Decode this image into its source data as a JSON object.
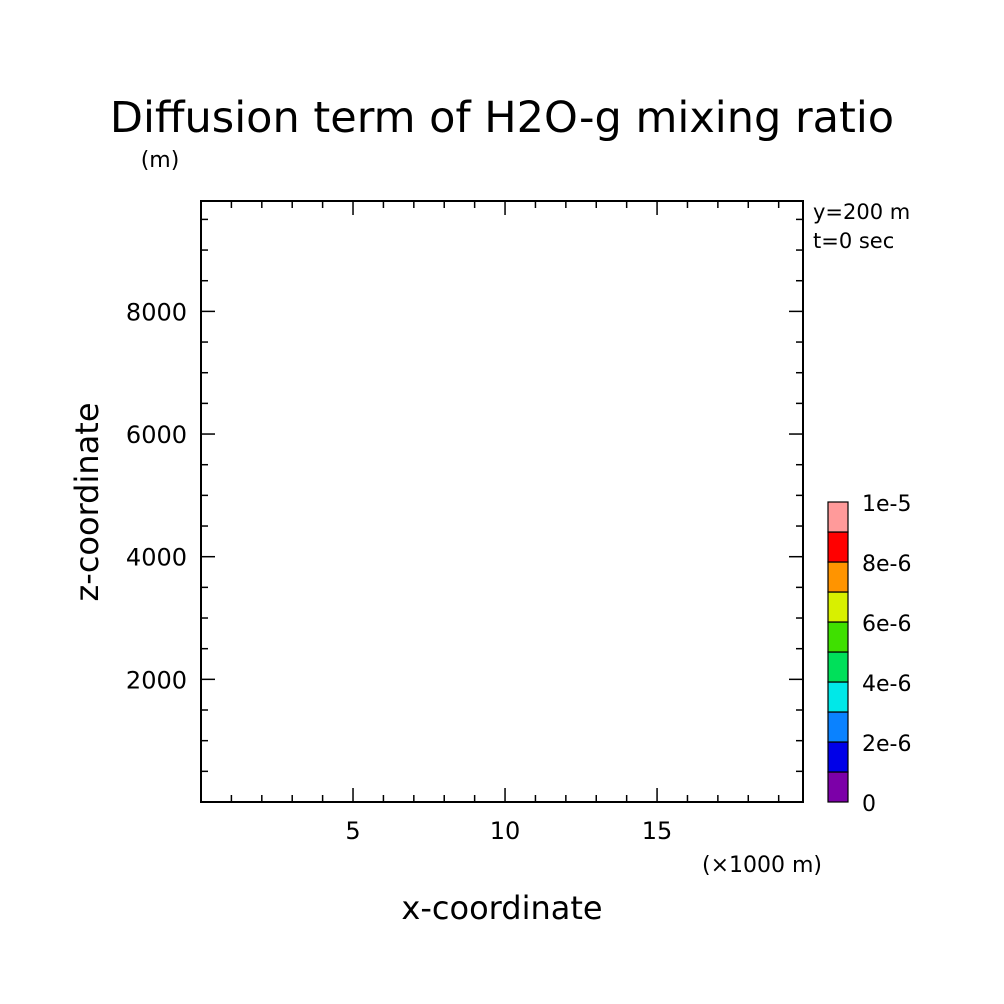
{
  "chart_data": {
    "type": "heatmap",
    "title": "Diffusion term of H2O-g mixing ratio",
    "z_unit": "(m)",
    "xlabel": "x-coordinate",
    "x_unit": "(×1000 m)",
    "ylabel": "z-coordinate",
    "xlim": [
      0.0,
      19.8
    ],
    "ylim": [
      0,
      9800
    ],
    "x_major_ticks": [
      5,
      10,
      15
    ],
    "x_minor_step": 1,
    "y_major_ticks": [
      2000,
      4000,
      6000,
      8000
    ],
    "y_minor_step": 500,
    "annotations": [
      "y=200 m",
      "t=0 sec"
    ],
    "field_values": "empty (no contours drawn)",
    "colorbar": {
      "levels": [
        0,
        1e-06,
        2e-06,
        3e-06,
        4e-06,
        5e-06,
        6e-06,
        7e-06,
        8e-06,
        9e-06,
        1e-05
      ],
      "colors": [
        "#7c00a8",
        "#0000e8",
        "#0a82ff",
        "#00e8e8",
        "#00e05a",
        "#3fe000",
        "#d8f000",
        "#ff9400",
        "#ff0000",
        "#ff9a9a"
      ],
      "tick_labels": [
        {
          "value": 0,
          "label": "0"
        },
        {
          "value": 2e-06,
          "label": "2e-6"
        },
        {
          "value": 4e-06,
          "label": "4e-6"
        },
        {
          "value": 6e-06,
          "label": "6e-6"
        },
        {
          "value": 8e-06,
          "label": "8e-6"
        },
        {
          "value": 1e-05,
          "label": "1e-5"
        }
      ]
    }
  }
}
